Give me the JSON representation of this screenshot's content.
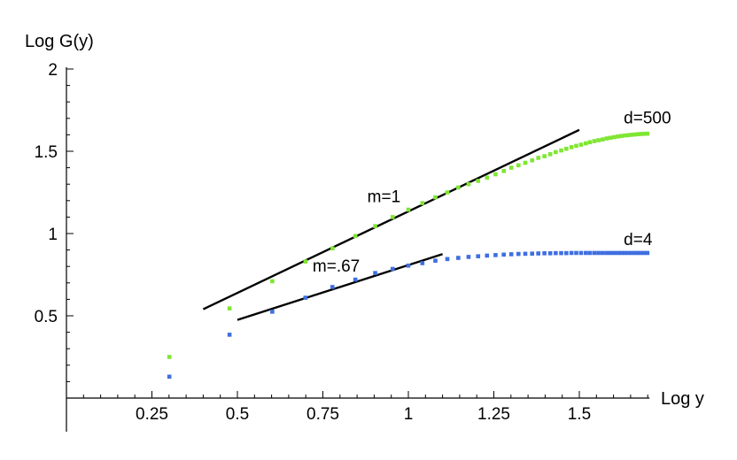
{
  "chart_data": {
    "type": "scatter",
    "xlabel": "Log y",
    "ylabel": "Log G(y)",
    "xlim": [
      0,
      1.7
    ],
    "ylim": [
      0,
      2
    ],
    "x_ticks": [
      0.25,
      0.5,
      0.75,
      1,
      1.25,
      1.5
    ],
    "x_tick_labels": [
      "0.25",
      "0.5",
      "0.75",
      "1",
      "1.25",
      "1.5"
    ],
    "y_ticks": [
      0.5,
      1,
      1.5,
      2
    ],
    "y_tick_labels": [
      "0.5",
      "1",
      "1.5",
      "2"
    ],
    "grid": false,
    "colors": {
      "d500": "#7fe632",
      "d4": "#3f6fe0",
      "fit": "#000000"
    },
    "series": [
      {
        "name": "d=500",
        "points": [
          [
            0.301,
            0.25
          ],
          [
            0.477,
            0.545
          ],
          [
            0.602,
            0.71
          ],
          [
            0.699,
            0.83
          ],
          [
            0.778,
            0.91
          ],
          [
            0.845,
            0.985
          ],
          [
            0.903,
            1.045
          ],
          [
            0.954,
            1.1
          ],
          [
            1.0,
            1.145
          ],
          [
            1.041,
            1.185
          ],
          [
            1.079,
            1.22
          ],
          [
            1.114,
            1.25
          ],
          [
            1.146,
            1.28
          ],
          [
            1.176,
            1.3
          ],
          [
            1.204,
            1.32
          ],
          [
            1.23,
            1.34
          ],
          [
            1.255,
            1.36
          ],
          [
            1.279,
            1.38
          ],
          [
            1.301,
            1.4
          ],
          [
            1.322,
            1.415
          ],
          [
            1.342,
            1.43
          ],
          [
            1.362,
            1.445
          ],
          [
            1.38,
            1.46
          ],
          [
            1.398,
            1.47
          ],
          [
            1.415,
            1.482
          ],
          [
            1.431,
            1.495
          ],
          [
            1.447,
            1.505
          ],
          [
            1.462,
            1.515
          ],
          [
            1.477,
            1.525
          ],
          [
            1.491,
            1.533
          ],
          [
            1.505,
            1.54
          ],
          [
            1.519,
            1.548
          ],
          [
            1.531,
            1.555
          ],
          [
            1.544,
            1.562
          ],
          [
            1.556,
            1.567
          ],
          [
            1.568,
            1.572
          ],
          [
            1.58,
            1.578
          ],
          [
            1.591,
            1.582
          ],
          [
            1.602,
            1.586
          ],
          [
            1.613,
            1.59
          ],
          [
            1.623,
            1.593
          ],
          [
            1.633,
            1.596
          ],
          [
            1.643,
            1.598
          ],
          [
            1.653,
            1.6
          ],
          [
            1.663,
            1.602
          ],
          [
            1.672,
            1.604
          ],
          [
            1.681,
            1.605
          ],
          [
            1.69,
            1.606
          ],
          [
            1.699,
            1.607
          ]
        ]
      },
      {
        "name": "d=4",
        "points": [
          [
            0.301,
            0.13
          ],
          [
            0.477,
            0.385
          ],
          [
            0.602,
            0.525
          ],
          [
            0.699,
            0.61
          ],
          [
            0.778,
            0.675
          ],
          [
            0.845,
            0.72
          ],
          [
            0.903,
            0.76
          ],
          [
            0.954,
            0.785
          ],
          [
            1.0,
            0.805
          ],
          [
            1.041,
            0.82
          ],
          [
            1.079,
            0.835
          ],
          [
            1.114,
            0.845
          ],
          [
            1.146,
            0.852
          ],
          [
            1.176,
            0.858
          ],
          [
            1.204,
            0.862
          ],
          [
            1.23,
            0.866
          ],
          [
            1.255,
            0.869
          ],
          [
            1.279,
            0.872
          ],
          [
            1.301,
            0.874
          ],
          [
            1.322,
            0.876
          ],
          [
            1.342,
            0.877
          ],
          [
            1.362,
            0.878
          ],
          [
            1.38,
            0.879
          ],
          [
            1.398,
            0.88
          ],
          [
            1.415,
            0.88
          ],
          [
            1.431,
            0.881
          ],
          [
            1.447,
            0.881
          ],
          [
            1.462,
            0.881
          ],
          [
            1.477,
            0.882
          ],
          [
            1.491,
            0.882
          ],
          [
            1.505,
            0.882
          ],
          [
            1.519,
            0.882
          ],
          [
            1.531,
            0.882
          ],
          [
            1.544,
            0.882
          ],
          [
            1.556,
            0.882
          ],
          [
            1.568,
            0.882
          ],
          [
            1.58,
            0.882
          ],
          [
            1.591,
            0.882
          ],
          [
            1.602,
            0.882
          ],
          [
            1.613,
            0.882
          ],
          [
            1.623,
            0.882
          ],
          [
            1.633,
            0.882
          ],
          [
            1.643,
            0.882
          ],
          [
            1.653,
            0.882
          ],
          [
            1.663,
            0.882
          ],
          [
            1.672,
            0.882
          ],
          [
            1.681,
            0.882
          ],
          [
            1.69,
            0.882
          ],
          [
            1.699,
            0.882
          ]
        ]
      }
    ],
    "fit_lines": [
      {
        "label": "m=1",
        "start": [
          0.4,
          0.54
        ],
        "end": [
          1.5,
          1.63
        ]
      },
      {
        "label": "m=.67",
        "start": [
          0.5,
          0.475
        ],
        "end": [
          1.1,
          0.875
        ]
      }
    ],
    "annotations": [
      {
        "text": "d=500",
        "at": [
          1.63,
          1.67
        ]
      },
      {
        "text": "m=1",
        "at": [
          0.88,
          1.19
        ]
      },
      {
        "text": "m=.67",
        "at": [
          0.72,
          0.77
        ]
      },
      {
        "text": "d=4",
        "at": [
          1.63,
          0.93
        ]
      }
    ]
  }
}
